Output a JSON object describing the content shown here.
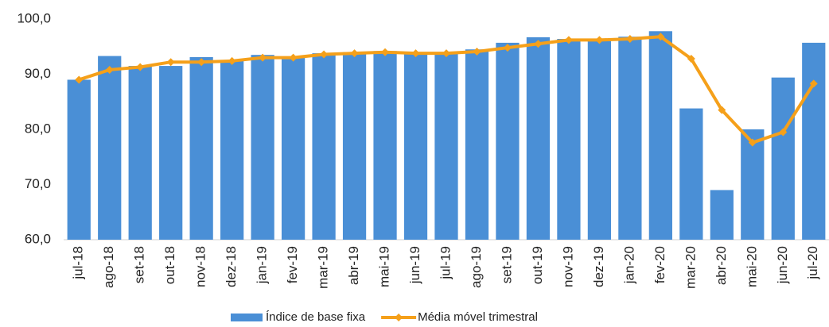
{
  "chart_data": {
    "type": "bar_line",
    "categories": [
      "jul-18",
      "ago-18",
      "set-18",
      "out-18",
      "nov-18",
      "dez-18",
      "jan-19",
      "fev-19",
      "mar-19",
      "abr-19",
      "mai-19",
      "jun-19",
      "jul-19",
      "ago-19",
      "set-19",
      "out-19",
      "nov-19",
      "dez-19",
      "jan-20",
      "fev-20",
      "mar-20",
      "abr-20",
      "mai-20",
      "jun-20",
      "jul-20"
    ],
    "series": [
      {
        "name": "Índice de base fixa",
        "type": "bar",
        "color": "#4a8fd6",
        "values": [
          89.0,
          93.3,
          91.5,
          91.5,
          93.1,
          92.5,
          93.5,
          93.2,
          93.8,
          94.0,
          94.2,
          93.9,
          94.0,
          94.5,
          95.7,
          96.7,
          96.4,
          96.0,
          96.8,
          97.8,
          83.8,
          69.0,
          80.0,
          89.4,
          95.7
        ]
      },
      {
        "name": "Média móvel trimestral",
        "type": "line",
        "color": "#f5a01a",
        "values": [
          89.0,
          90.8,
          91.3,
          92.2,
          92.2,
          92.4,
          93.0,
          93.0,
          93.6,
          93.8,
          94.0,
          93.8,
          93.8,
          94.1,
          94.8,
          95.5,
          96.2,
          96.2,
          96.4,
          96.8,
          92.8,
          83.5,
          77.6,
          79.5,
          88.3
        ]
      }
    ],
    "ylim": [
      60,
      100
    ],
    "yticks": [
      {
        "value": 60,
        "label": "60,0"
      },
      {
        "value": 70,
        "label": "70,0"
      },
      {
        "value": 80,
        "label": "80,0"
      },
      {
        "value": 90,
        "label": "90,0"
      },
      {
        "value": 100,
        "label": "100,0"
      }
    ],
    "legend": "bottom"
  }
}
